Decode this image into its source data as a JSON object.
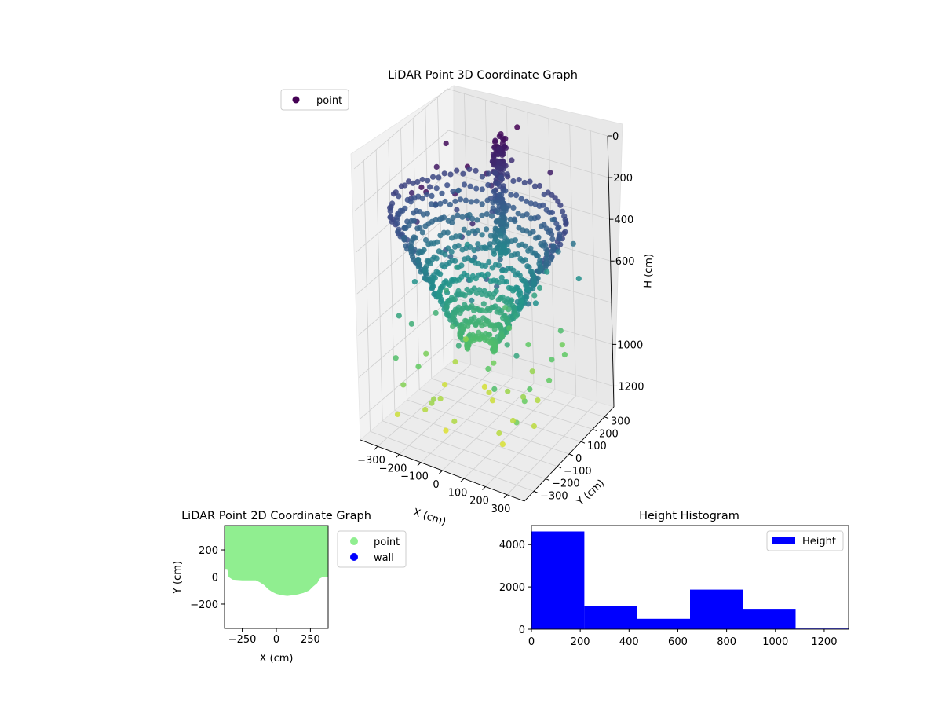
{
  "chart_data": [
    {
      "type": "scatter",
      "title": "LiDAR Point 3D Coordinate Graph",
      "xlabel": "X (cm)",
      "ylabel": "Y (cm)",
      "zlabel": "H (cm)",
      "x_ticks": [
        -300,
        -200,
        -100,
        0,
        100,
        200,
        300
      ],
      "y_ticks": [
        -300,
        -200,
        -100,
        0,
        100,
        200,
        300
      ],
      "z_ticks": [
        0,
        200,
        400,
        600,
        1000,
        1200
      ],
      "xlim": [
        -380,
        380
      ],
      "ylim": [
        -380,
        380
      ],
      "zlim": [
        0,
        1300
      ],
      "z_inverted": true,
      "colormap": [
        "#440154",
        "#3b528b",
        "#21918c",
        "#5ec962",
        "#fde725"
      ],
      "legend": {
        "position": "upper-left",
        "entries": [
          {
            "label": "point",
            "color": "#440154"
          }
        ]
      },
      "grid": true
    },
    {
      "type": "scatter",
      "title": "LiDAR Point 2D Coordinate Graph",
      "xlabel": "X (cm)",
      "ylabel": "Y (cm)",
      "x_ticks": [
        -250,
        0,
        250
      ],
      "y_ticks": [
        -200,
        0,
        200
      ],
      "xlim": [
        -380,
        380
      ],
      "ylim": [
        -380,
        380
      ],
      "legend": {
        "position": "outside-right",
        "entries": [
          {
            "label": "point",
            "color": "#90ee90"
          },
          {
            "label": "wall",
            "color": "#0000ff"
          }
        ]
      },
      "series": [
        {
          "name": "point",
          "color": "#90ee90",
          "boundary": [
            [
              -380,
              60
            ],
            [
              -360,
              60
            ],
            [
              -350,
              0
            ],
            [
              -320,
              -20
            ],
            [
              -250,
              -25
            ],
            [
              -150,
              -25
            ],
            [
              -120,
              -40
            ],
            [
              -90,
              -60
            ],
            [
              -60,
              -90
            ],
            [
              -30,
              -110
            ],
            [
              0,
              -125
            ],
            [
              40,
              -135
            ],
            [
              80,
              -140
            ],
            [
              120,
              -135
            ],
            [
              160,
              -128
            ],
            [
              200,
              -118
            ],
            [
              240,
              -100
            ],
            [
              270,
              -70
            ],
            [
              300,
              -45
            ],
            [
              320,
              -10
            ],
            [
              340,
              0
            ],
            [
              380,
              0
            ]
          ]
        },
        {
          "name": "wall",
          "color": "#0000ff",
          "values": []
        }
      ]
    },
    {
      "type": "bar",
      "title": "Height Histogram",
      "xlabel": "",
      "ylabel": "",
      "x_ticks": [
        0,
        200,
        400,
        600,
        800,
        1000,
        1200
      ],
      "y_ticks": [
        0,
        2000,
        4000
      ],
      "xlim": [
        0,
        1300
      ],
      "ylim": [
        0,
        4900
      ],
      "bin_edges": [
        0,
        217,
        433,
        650,
        867,
        1083,
        1300
      ],
      "values": [
        4620,
        1100,
        490,
        1870,
        960,
        30
      ],
      "color": "#0000ff",
      "legend": {
        "position": "top-right",
        "entries": [
          {
            "label": "Height",
            "color": "#0000ff"
          }
        ]
      }
    }
  ]
}
